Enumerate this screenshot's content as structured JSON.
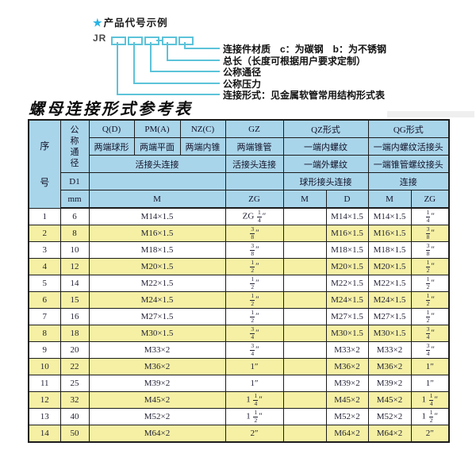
{
  "diagram": {
    "star": "★",
    "heading": "产品代号示例",
    "prefix": "JR",
    "labels": [
      "连接件材质　c：为碳钢　b：为不锈钢",
      "总长（长度可根据用户要求定制）",
      "公称通径",
      "公称压力",
      "连接形式：见金属软管常用结构形式表"
    ]
  },
  "title": "螺母连接形式参考表",
  "table": {
    "header": {
      "seq": "序号",
      "diameter": "公称通径",
      "d1": "D1",
      "mm": "mm",
      "col_q": "Q(D)",
      "col_pm": "PM(A)",
      "col_nz": "NZ(C)",
      "col_gz": "GZ",
      "col_qz": "QZ形式",
      "col_qg": "QG形式",
      "q_desc": "两端球形",
      "pm_desc": "两端平面",
      "nz_desc": "两端内锥",
      "gz_desc": "两端锥管",
      "qz_desc1": "一端内螺纹",
      "qg_desc1": "一端内螺纹活接头",
      "union_conn": "活接头连接",
      "gz_conn": "活接头连接",
      "qz_desc2": "一端外螺纹",
      "qg_desc2": "一端锥管螺纹接头",
      "qz_conn": "球形接头连接",
      "qg_conn": "连接",
      "m_label": "M",
      "zg_label": "ZG",
      "qz_m": "M",
      "qz_d": "D",
      "qg_m": "M",
      "qg_zg": "ZG"
    },
    "rows": [
      [
        "1",
        "6",
        "M14×1.5",
        "ZG 1/4″",
        "",
        "M14×1.5",
        "M14×1.5",
        "1/4″"
      ],
      [
        "2",
        "8",
        "M16×1.5",
        "3/8″",
        "",
        "M16×1.5",
        "M16×1.5",
        "3/8″"
      ],
      [
        "3",
        "10",
        "M18×1.5",
        "3/8″",
        "",
        "M18×1.5",
        "M18×1.5",
        "3/8″"
      ],
      [
        "4",
        "12",
        "M20×1.5",
        "1/2″",
        "",
        "M20×1.5",
        "M20×1.5",
        "1/2″"
      ],
      [
        "5",
        "14",
        "M22×1.5",
        "1/2″",
        "",
        "M22×1.5",
        "M22×1.5",
        "1/2″"
      ],
      [
        "6",
        "15",
        "M24×1.5",
        "1/2″",
        "",
        "M24×1.5",
        "M24×1.5",
        "1/2″"
      ],
      [
        "7",
        "16",
        "M27×1.5",
        "1/2″",
        "",
        "M27×1.5",
        "M27×1.5",
        "1/2″"
      ],
      [
        "8",
        "18",
        "M30×1.5",
        "3/4″",
        "",
        "M30×1.5",
        "M30×1.5",
        "3/4″"
      ],
      [
        "9",
        "20",
        "M33×2",
        "3/4″",
        "",
        "M33×2",
        "M33×2",
        "3/4″"
      ],
      [
        "10",
        "22",
        "M36×2",
        "1″",
        "",
        "M36×2",
        "M36×2",
        "1″"
      ],
      [
        "11",
        "25",
        "M39×2",
        "1″",
        "",
        "M39×2",
        "M39×2",
        "1″"
      ],
      [
        "12",
        "32",
        "M45×2",
        "1 1/4″",
        "",
        "M45×2",
        "M45×2",
        "1 1/4″"
      ],
      [
        "13",
        "40",
        "M52×2",
        "1 1/2″",
        "",
        "M52×2",
        "M52×2",
        "1 1/2″"
      ],
      [
        "14",
        "50",
        "M64×2",
        "2″",
        "",
        "M64×2",
        "M64×2",
        "2″"
      ]
    ]
  },
  "colors": {
    "header_bg": "#a9d5ea",
    "row_alt_bg": "#f5f0a4",
    "accent_cyan": "#5cc3d9",
    "star_cyan": "#28b3e4",
    "border": "#1c1c1c",
    "text": "#1f1f33"
  }
}
